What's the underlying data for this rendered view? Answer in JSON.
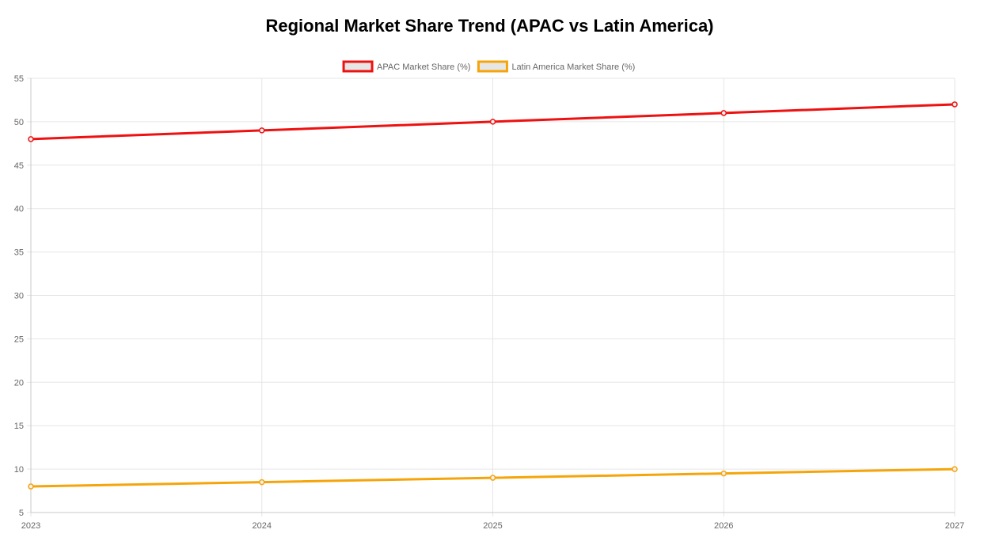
{
  "chart_data": {
    "type": "line",
    "title": "Regional Market Share Trend (APAC vs Latin America)",
    "categories": [
      "2023",
      "2024",
      "2025",
      "2026",
      "2027"
    ],
    "series": [
      {
        "name": "APAC Market Share (%)",
        "values": [
          48,
          49,
          50,
          51,
          52
        ],
        "color": "#ee1111"
      },
      {
        "name": "Latin America Market Share (%)",
        "values": [
          8,
          8.5,
          9,
          9.5,
          10
        ],
        "color": "#f5a50a"
      }
    ],
    "xlabel": "",
    "ylabel": "",
    "ylim": [
      5,
      55
    ],
    "yticks": [
      5,
      10,
      15,
      20,
      25,
      30,
      35,
      40,
      45,
      50,
      55
    ],
    "grid": true,
    "legend_position": "top"
  }
}
